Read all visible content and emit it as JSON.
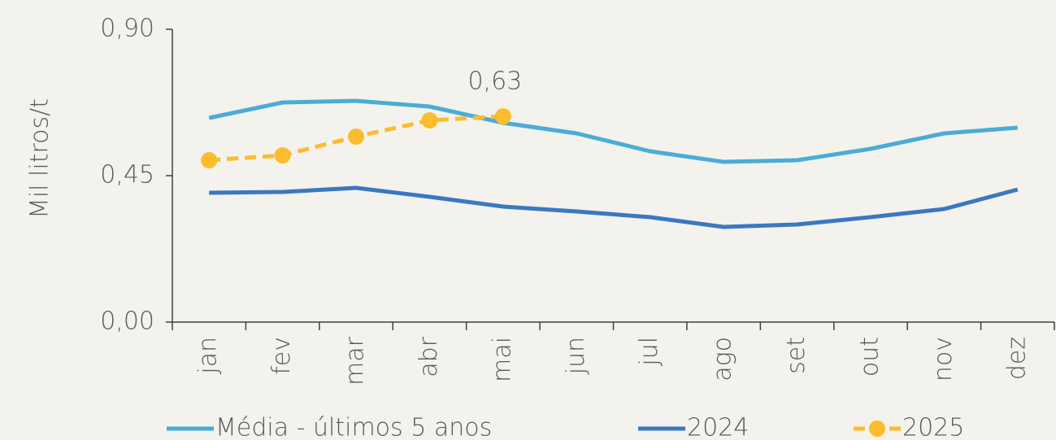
{
  "chart_data": {
    "type": "line",
    "y_label": "Mil litros/t",
    "categories": [
      "jan",
      "fev",
      "mar",
      "abr",
      "mai",
      "jun",
      "jul",
      "ago",
      "set",
      "out",
      "nov",
      "dez"
    ],
    "series": [
      {
        "name": "Média - últimos 5 anos",
        "color": "#4bacd6",
        "values": [
          0.6275,
          0.675,
          0.68,
          0.6625,
          0.6125,
          0.58,
          0.525,
          0.4925,
          0.4975,
          0.5325,
          0.58,
          0.5975
        ]
      },
      {
        "name": "2024",
        "color": "#3a78c0",
        "values": [
          0.3975,
          0.4,
          0.4125,
          0.385,
          0.355,
          0.34,
          0.3225,
          0.2925,
          0.3,
          0.3225,
          0.3475,
          0.4075
        ]
      },
      {
        "name": "2025",
        "color": "#fbbd2e",
        "dashed": true,
        "markers": true,
        "values": [
          0.4975,
          0.5125,
          0.57,
          0.62,
          0.6325,
          null,
          null,
          null,
          null,
          null,
          null,
          null
        ],
        "value_labels": [
          null,
          null,
          null,
          null,
          "0,63",
          null,
          null,
          null,
          null,
          null,
          null,
          null
        ]
      }
    ],
    "ylim": [
      0,
      0.9
    ],
    "yticks": [
      {
        "value": 0,
        "label": "0,00"
      },
      {
        "value": 0.45,
        "label": "0,45"
      },
      {
        "value": 0.9,
        "label": "0,90"
      }
    ],
    "legend": "bottom"
  }
}
